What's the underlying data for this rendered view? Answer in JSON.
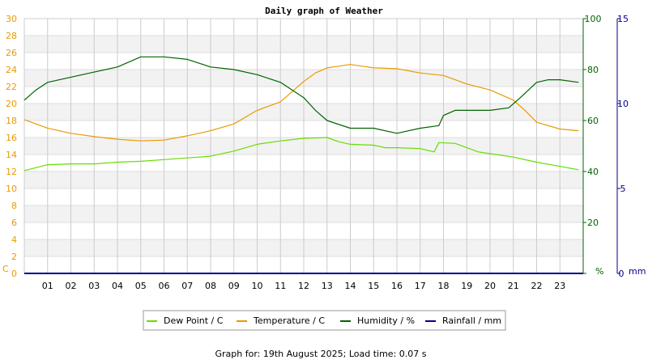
{
  "chart_data": {
    "type": "line",
    "title": "Daily graph of Weather",
    "x": {
      "unit": "hour",
      "range": [
        0,
        24
      ],
      "tick_labels": [
        "01",
        "02",
        "03",
        "04",
        "05",
        "06",
        "07",
        "08",
        "09",
        "10",
        "11",
        "12",
        "13",
        "14",
        "15",
        "16",
        "17",
        "18",
        "19",
        "20",
        "21",
        "22",
        "23"
      ]
    },
    "axes": {
      "temp": {
        "unit_label": "C",
        "ylim": [
          0,
          30
        ],
        "ticks": [
          0,
          2,
          4,
          6,
          8,
          10,
          12,
          14,
          16,
          18,
          20,
          22,
          24,
          26,
          28,
          30
        ],
        "color": "#e89b00",
        "side": "left"
      },
      "humidity": {
        "unit_label": "%",
        "ylim": [
          0,
          100
        ],
        "ticks": [
          0,
          20,
          40,
          60,
          80,
          100
        ],
        "color": "#006400",
        "side": "right"
      },
      "rain": {
        "unit_label": "mm",
        "ylim": [
          0,
          15
        ],
        "ticks": [
          0,
          5,
          10,
          15
        ],
        "color": "#00008b",
        "side": "right-outer"
      }
    },
    "grid": true,
    "legend_position": "bottom",
    "series": [
      {
        "name": "Dew Point / C",
        "axis": "temp",
        "color": "#66dd00",
        "points": [
          [
            0,
            12.1
          ],
          [
            1,
            12.8
          ],
          [
            2,
            12.9
          ],
          [
            3,
            12.9
          ],
          [
            4,
            13.1
          ],
          [
            5,
            13.2
          ],
          [
            6,
            13.4
          ],
          [
            7,
            13.6
          ],
          [
            8,
            13.8
          ],
          [
            9,
            14.4
          ],
          [
            10,
            15.2
          ],
          [
            11,
            15.6
          ],
          [
            12,
            15.9
          ],
          [
            13,
            16.0
          ],
          [
            13.5,
            15.5
          ],
          [
            14,
            15.2
          ],
          [
            15,
            15.1
          ],
          [
            15.5,
            14.8
          ],
          [
            16,
            14.8
          ],
          [
            17,
            14.7
          ],
          [
            17.6,
            14.3
          ],
          [
            17.8,
            15.4
          ],
          [
            18.5,
            15.3
          ],
          [
            19,
            14.8
          ],
          [
            19.5,
            14.3
          ],
          [
            20,
            14.1
          ],
          [
            21,
            13.7
          ],
          [
            22,
            13.1
          ],
          [
            23,
            12.6
          ],
          [
            23.8,
            12.2
          ]
        ],
        "color_name": "bright green"
      },
      {
        "name": "Temperature / C",
        "axis": "temp",
        "color": "#e89b00",
        "points": [
          [
            0,
            18.1
          ],
          [
            1,
            17.1
          ],
          [
            2,
            16.5
          ],
          [
            3,
            16.1
          ],
          [
            4,
            15.8
          ],
          [
            5,
            15.6
          ],
          [
            6,
            15.7
          ],
          [
            7,
            16.2
          ],
          [
            8,
            16.8
          ],
          [
            9,
            17.6
          ],
          [
            10,
            19.2
          ],
          [
            11,
            20.2
          ],
          [
            11.5,
            21.4
          ],
          [
            12,
            22.6
          ],
          [
            12.5,
            23.6
          ],
          [
            13,
            24.2
          ],
          [
            13.5,
            24.4
          ],
          [
            14,
            24.6
          ],
          [
            14.5,
            24.4
          ],
          [
            15,
            24.2
          ],
          [
            16,
            24.1
          ],
          [
            17,
            23.6
          ],
          [
            18,
            23.3
          ],
          [
            19,
            22.3
          ],
          [
            20,
            21.6
          ],
          [
            21,
            20.4
          ],
          [
            21.5,
            19.2
          ],
          [
            22,
            17.8
          ],
          [
            23,
            17.0
          ],
          [
            23.8,
            16.8
          ]
        ],
        "color_name": "orange"
      },
      {
        "name": "Humidity / %",
        "axis": "humidity",
        "color": "#006400",
        "points": [
          [
            0,
            68
          ],
          [
            0.5,
            72
          ],
          [
            1,
            75
          ],
          [
            2,
            77
          ],
          [
            3,
            79
          ],
          [
            4,
            81
          ],
          [
            5,
            85
          ],
          [
            6,
            85
          ],
          [
            7,
            84
          ],
          [
            8,
            81
          ],
          [
            9,
            80
          ],
          [
            10,
            78
          ],
          [
            11,
            75
          ],
          [
            11.5,
            72
          ],
          [
            12,
            69
          ],
          [
            12.5,
            64
          ],
          [
            13,
            60
          ],
          [
            14,
            57
          ],
          [
            15,
            57
          ],
          [
            16,
            55
          ],
          [
            17,
            57
          ],
          [
            17.8,
            58
          ],
          [
            18,
            62
          ],
          [
            18.5,
            64
          ],
          [
            19,
            64
          ],
          [
            20,
            64
          ],
          [
            20.8,
            65
          ],
          [
            21.3,
            69
          ],
          [
            22,
            75
          ],
          [
            22.5,
            76
          ],
          [
            23,
            76
          ],
          [
            23.8,
            75
          ]
        ],
        "color_name": "dark green"
      },
      {
        "name": "Rainfall / mm",
        "axis": "rain",
        "color": "#00008b",
        "points": [
          [
            0,
            0
          ],
          [
            24,
            0
          ]
        ],
        "color_name": "dark blue"
      }
    ],
    "footer": "Graph for: 19th August 2025; Load time: 0.07 s"
  }
}
